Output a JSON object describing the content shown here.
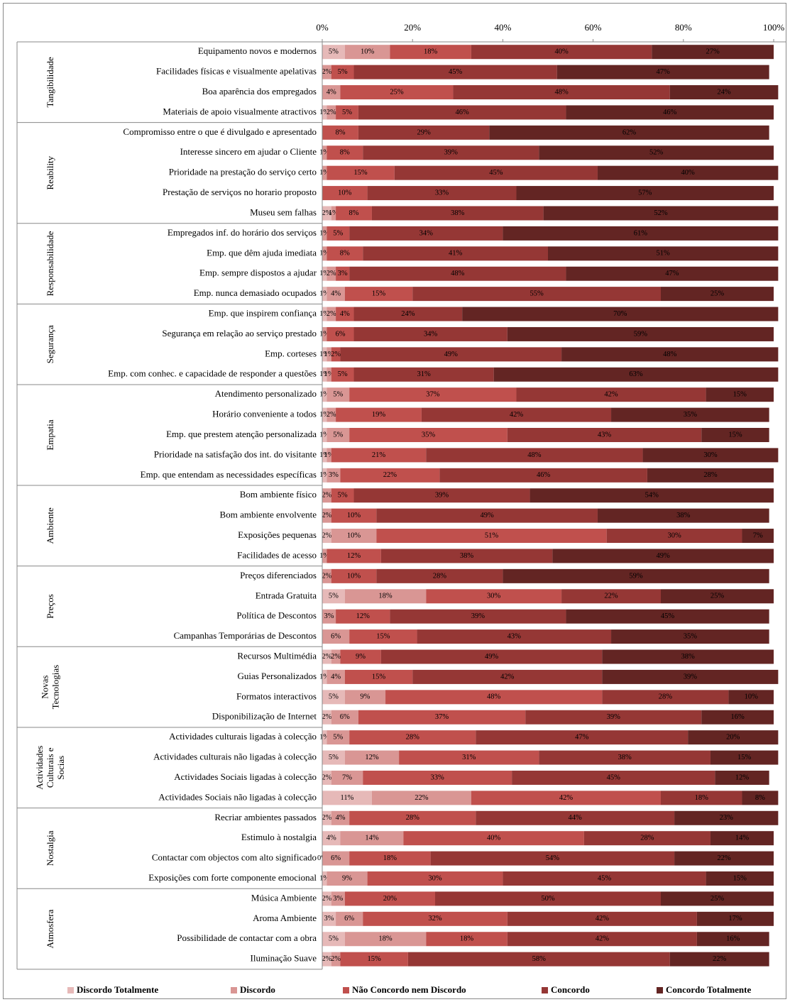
{
  "chart_data": {
    "type": "stacked_bar_horizontal_percent",
    "xlim": [
      0,
      100
    ],
    "xticks": [
      {
        "value": 0,
        "label": "0%"
      },
      {
        "value": 20,
        "label": "20%"
      },
      {
        "value": 40,
        "label": "40%"
      },
      {
        "value": 60,
        "label": "60%"
      },
      {
        "value": 80,
        "label": "80%"
      },
      {
        "value": 100,
        "label": "100%"
      }
    ],
    "legend": "bottom",
    "groups": [
      {
        "name": [
          "Tangibilidade"
        ],
        "categories": [
          "Equipamento novos e modernos",
          "Facilidades físicas e visualmente apelativas",
          "Boa aparência dos empregados",
          "Materiais de apoio visualmente atractivos"
        ]
      },
      {
        "name": [
          "Reability"
        ],
        "categories": [
          "Compromisso entre o que é divulgado e apresentado",
          "Interesse sincero em ajudar o Cliente",
          "Prioridade na prestação do serviço certo",
          "Prestação de serviços no horario proposto",
          "Museu sem falhas"
        ]
      },
      {
        "name": [
          "Responsabilidade"
        ],
        "categories": [
          "Empregados inf.  do horário dos serviços",
          "Emp. que dêm ajuda imediata",
          "Emp. sempre dispostos a ajudar",
          "Emp. nunca demasiado ocupados"
        ]
      },
      {
        "name": [
          "Segurança"
        ],
        "categories": [
          "Emp. que inspirem confiança",
          "Segurança em relação ao serviço prestado",
          "Emp. corteses",
          "Emp. com conhec. e capacidade de responder a questões"
        ]
      },
      {
        "name": [
          "Empatia"
        ],
        "categories": [
          "Atendimento personalizado",
          "Horário conveniente a todos",
          "Emp. que prestem atenção personalizada",
          "Prioridade na satisfação dos int. do visitante",
          "Emp. que entendam as necessidades específicas"
        ]
      },
      {
        "name": [
          "Ambiente"
        ],
        "categories": [
          "Bom ambiente físico",
          "Bom ambiente envolvente",
          "Exposições pequenas",
          "Facilidades de acesso"
        ]
      },
      {
        "name": [
          "Preços"
        ],
        "categories": [
          "Preços diferenciados",
          "Entrada Gratuita",
          "Política de Descontos",
          "Campanhas Temporárias de Descontos"
        ]
      },
      {
        "name": [
          "Novas",
          "Tecnologias"
        ],
        "categories": [
          "Recursos Multimédia",
          "Guias Personalizados",
          "Formatos interactivos",
          "Disponibilização de Internet"
        ]
      },
      {
        "name": [
          "Actividades",
          "Culturais e",
          "Socias"
        ],
        "categories": [
          "Actividades culturais ligadas à colecção",
          "Actividades culturais não ligadas à colecção",
          "Actividades Sociais ligadas à colecção",
          "Actividades Sociais não ligadas à colecção"
        ]
      },
      {
        "name": [
          "Nostalgia"
        ],
        "categories": [
          "Recriar ambientes passados",
          "Estimulo à nostalgia",
          "Contactar com objectos com alto significado",
          "Exposições com forte componente emocional"
        ]
      },
      {
        "name": [
          "Atmosfera"
        ],
        "categories": [
          "Música Ambiente",
          "Aroma Ambiente",
          "Possibilidade de contactar com a obra",
          "Iluminação Suave"
        ]
      }
    ],
    "series": [
      {
        "name": "Discordo Totalmente",
        "color": "#e6b9b8",
        "values": [
          5,
          null,
          null,
          1,
          null,
          null,
          null,
          null,
          2,
          null,
          null,
          1,
          1,
          1,
          null,
          1,
          1,
          1,
          1,
          1,
          1,
          1,
          null,
          null,
          2,
          null,
          null,
          5,
          null,
          null,
          2,
          1,
          5,
          2,
          1,
          5,
          2,
          11,
          2,
          4,
          0,
          1,
          2,
          3,
          5,
          2
        ],
        "value_labels": [
          "5%",
          null,
          null,
          "1%",
          null,
          null,
          null,
          null,
          "2%",
          null,
          null,
          "1%",
          "1%",
          "1%",
          null,
          "1%",
          "1%",
          "1%",
          "1%",
          "1%",
          "1%",
          "1%",
          null,
          null,
          "2%",
          null,
          null,
          "5%",
          null,
          null,
          "2%",
          "1%",
          "5%",
          "2%",
          "1%",
          "5%",
          "2%",
          "11%",
          "2%",
          "4%",
          "0%",
          "1%",
          "2%",
          "3%",
          "5%",
          "2%"
        ]
      },
      {
        "name": "Discordo",
        "color": "#d99694",
        "values": [
          10,
          2,
          4,
          2,
          null,
          1,
          1,
          null,
          1,
          1,
          1,
          2,
          4,
          2,
          1,
          1,
          1,
          5,
          2,
          5,
          1,
          3,
          2,
          2,
          10,
          1,
          2,
          18,
          3,
          6,
          2,
          4,
          9,
          6,
          5,
          12,
          7,
          22,
          4,
          14,
          6,
          9,
          3,
          6,
          18,
          2
        ],
        "value_labels": [
          "10%",
          "2%",
          "4%",
          "2%",
          null,
          "1%",
          "1%",
          null,
          "1%",
          "1%",
          "1%",
          "2%",
          "4%",
          "2%",
          "1%",
          "1%",
          "1%",
          "5%",
          "2%",
          "5%",
          "1%",
          "3%",
          "2%",
          "2%",
          "10%",
          "1%",
          "2%",
          "18%",
          "3%",
          "6%",
          "2%",
          "4%",
          "9%",
          "6%",
          "5%",
          "12%",
          "7%",
          "22%",
          "4%",
          "14%",
          "6%",
          "9%",
          "3%",
          "6%",
          "18%",
          "2%"
        ]
      },
      {
        "name": "Não Concordo nem Discordo",
        "color": "#c0504d",
        "values": [
          18,
          5,
          25,
          5,
          8,
          8,
          15,
          10,
          8,
          5,
          8,
          3,
          15,
          4,
          6,
          2,
          5,
          37,
          19,
          35,
          21,
          22,
          5,
          10,
          51,
          12,
          10,
          30,
          12,
          15,
          9,
          15,
          48,
          37,
          28,
          31,
          33,
          42,
          28,
          40,
          18,
          30,
          20,
          32,
          18,
          15
        ],
        "value_labels": [
          "18%",
          "5%",
          "25%",
          "5%",
          "8%",
          "8%",
          "15%",
          "10%",
          "8%",
          "5%",
          "8%",
          "3%",
          "15%",
          "4%",
          "6%",
          "2%",
          "5%",
          "37%",
          "19%",
          "35%",
          "21%",
          "22%",
          "5%",
          "10%",
          "51%",
          "12%",
          "10%",
          "30%",
          "12%",
          "15%",
          "9%",
          "15%",
          "48%",
          "37%",
          "28%",
          "31%",
          "33%",
          "42%",
          "28%",
          "40%",
          "18%",
          "30%",
          "20%",
          "32%",
          "18%",
          "15%"
        ]
      },
      {
        "name": "Concordo",
        "color": "#953735",
        "values": [
          40,
          45,
          48,
          46,
          29,
          39,
          45,
          33,
          38,
          34,
          41,
          48,
          55,
          24,
          34,
          49,
          31,
          42,
          42,
          43,
          48,
          46,
          39,
          49,
          30,
          38,
          28,
          22,
          39,
          43,
          49,
          42,
          28,
          39,
          47,
          38,
          45,
          18,
          44,
          28,
          54,
          45,
          50,
          42,
          42,
          58
        ],
        "value_labels": [
          "40%",
          "45%",
          "48%",
          "46%",
          "29%",
          "39%",
          "45%",
          "33%",
          "38%",
          "34%",
          "41%",
          "48%",
          "55%",
          "24%",
          "34%",
          "49%",
          "31%",
          "42%",
          "42%",
          "43%",
          "48%",
          "46%",
          "39%",
          "49%",
          "30%",
          "38%",
          "28%",
          "22%",
          "39%",
          "43%",
          "49%",
          "42%",
          "28%",
          "39%",
          "47%",
          "38%",
          "45%",
          "18%",
          "44%",
          "28%",
          "54%",
          "45%",
          "50%",
          "42%",
          "42%",
          "58%"
        ]
      },
      {
        "name": "Concordo Totalmente",
        "color": "#632523",
        "values": [
          27,
          47,
          24,
          46,
          62,
          52,
          40,
          57,
          52,
          61,
          51,
          47,
          25,
          70,
          59,
          48,
          63,
          15,
          35,
          15,
          30,
          28,
          54,
          38,
          7,
          49,
          59,
          25,
          45,
          35,
          38,
          39,
          10,
          16,
          20,
          15,
          12,
          8,
          23,
          14,
          22,
          15,
          25,
          17,
          16,
          22
        ],
        "value_labels": [
          "27%",
          "47%",
          "24%",
          "46%",
          "62%",
          "52%",
          "40%",
          "57%",
          "52%",
          "61%",
          "51%",
          "47%",
          "25%",
          "70%",
          "59%",
          "48%",
          "63%",
          "15%",
          "35%",
          "15%",
          "30%",
          "28%",
          "54%",
          "38%",
          "7%",
          "49%",
          "59%",
          "25%",
          "45%",
          "35%",
          "38%",
          "39%",
          "10%",
          "16%",
          "20%",
          "15%",
          "12%",
          "8%",
          "23%",
          "14%",
          "22%",
          "15%",
          "25%",
          "17%",
          "16%",
          "22%"
        ]
      }
    ]
  }
}
